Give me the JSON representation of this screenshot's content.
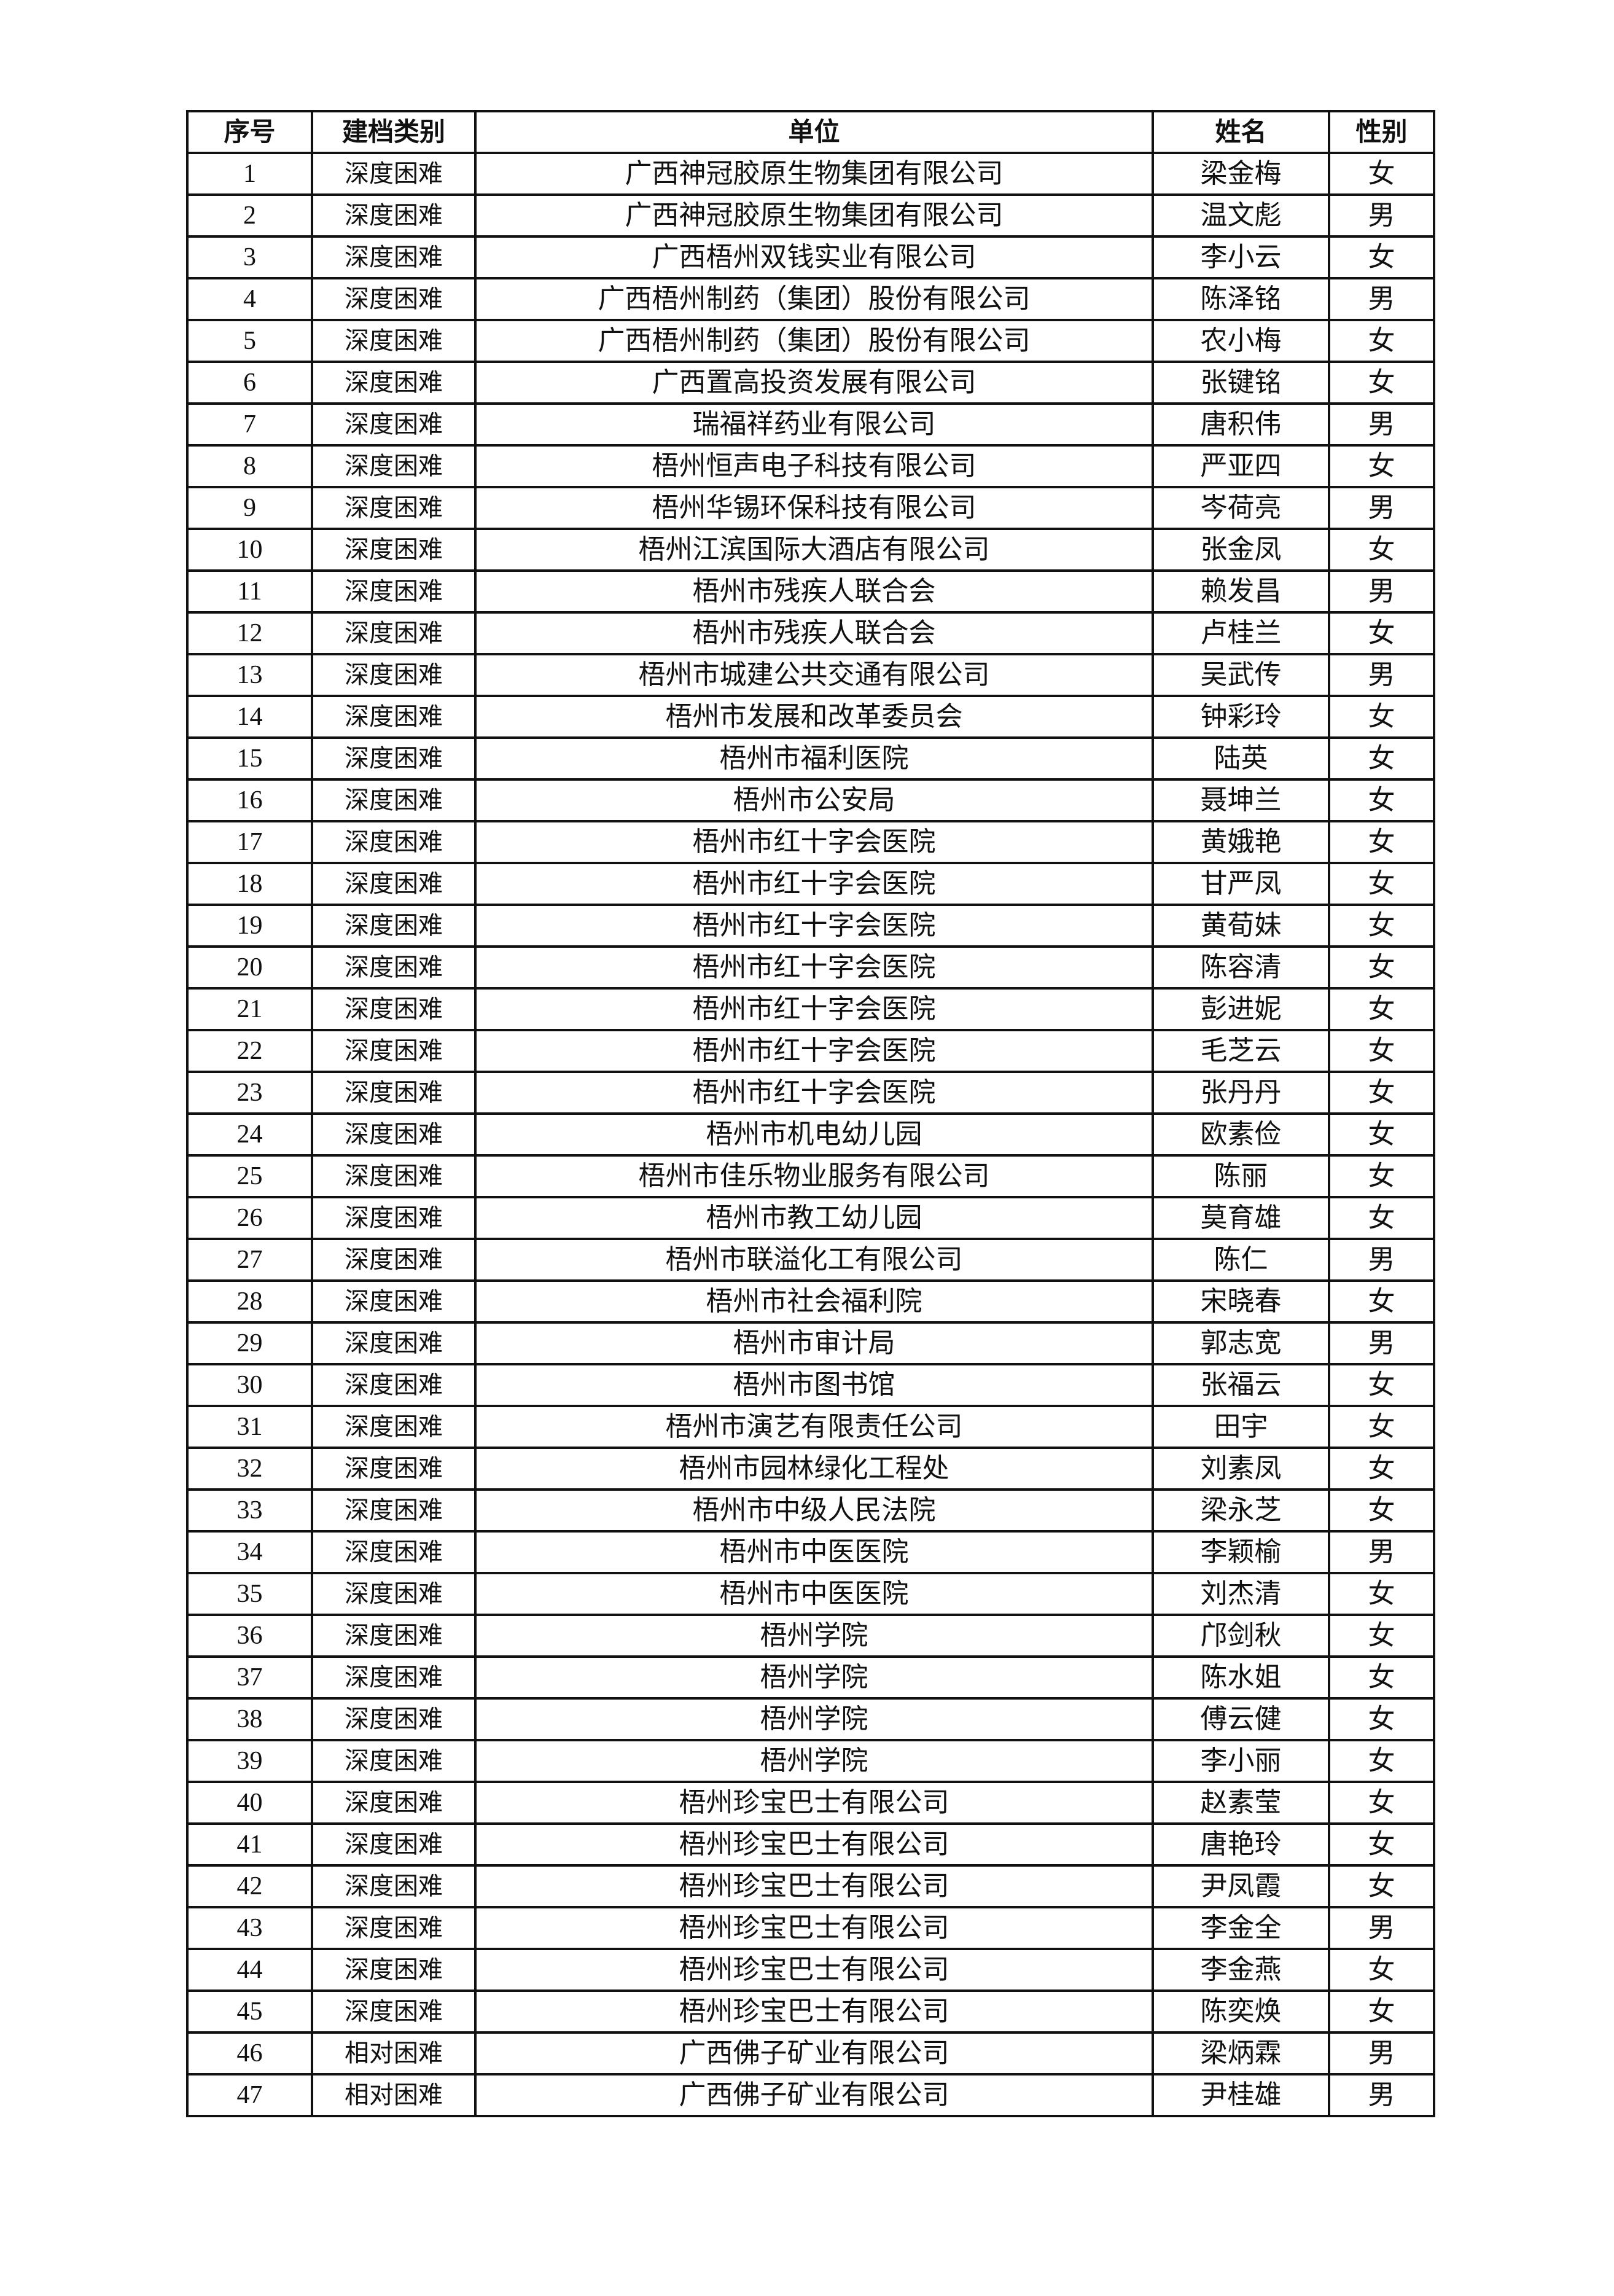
{
  "table": {
    "headers": [
      "序号",
      "建档类别",
      "单位",
      "姓名",
      "性别"
    ],
    "rows": [
      [
        "1",
        "深度困难",
        "广西神冠胶原生物集团有限公司",
        "梁金梅",
        "女"
      ],
      [
        "2",
        "深度困难",
        "广西神冠胶原生物集团有限公司",
        "温文彪",
        "男"
      ],
      [
        "3",
        "深度困难",
        "广西梧州双钱实业有限公司",
        "李小云",
        "女"
      ],
      [
        "4",
        "深度困难",
        "广西梧州制药（集团）股份有限公司",
        "陈泽铭",
        "男"
      ],
      [
        "5",
        "深度困难",
        "广西梧州制药（集团）股份有限公司",
        "农小梅",
        "女"
      ],
      [
        "6",
        "深度困难",
        "广西置高投资发展有限公司",
        "张键铭",
        "女"
      ],
      [
        "7",
        "深度困难",
        "瑞福祥药业有限公司",
        "唐积伟",
        "男"
      ],
      [
        "8",
        "深度困难",
        "梧州恒声电子科技有限公司",
        "严亚四",
        "女"
      ],
      [
        "9",
        "深度困难",
        "梧州华锡环保科技有限公司",
        "岑荷亮",
        "男"
      ],
      [
        "10",
        "深度困难",
        "梧州江滨国际大酒店有限公司",
        "张金凤",
        "女"
      ],
      [
        "11",
        "深度困难",
        "梧州市残疾人联合会",
        "赖发昌",
        "男"
      ],
      [
        "12",
        "深度困难",
        "梧州市残疾人联合会",
        "卢桂兰",
        "女"
      ],
      [
        "13",
        "深度困难",
        "梧州市城建公共交通有限公司",
        "吴武传",
        "男"
      ],
      [
        "14",
        "深度困难",
        "梧州市发展和改革委员会",
        "钟彩玲",
        "女"
      ],
      [
        "15",
        "深度困难",
        "梧州市福利医院",
        "陆英",
        "女"
      ],
      [
        "16",
        "深度困难",
        "梧州市公安局",
        "聂坤兰",
        "女"
      ],
      [
        "17",
        "深度困难",
        "梧州市红十字会医院",
        "黄娥艳",
        "女"
      ],
      [
        "18",
        "深度困难",
        "梧州市红十字会医院",
        "甘严凤",
        "女"
      ],
      [
        "19",
        "深度困难",
        "梧州市红十字会医院",
        "黄荀妹",
        "女"
      ],
      [
        "20",
        "深度困难",
        "梧州市红十字会医院",
        "陈容清",
        "女"
      ],
      [
        "21",
        "深度困难",
        "梧州市红十字会医院",
        "彭进妮",
        "女"
      ],
      [
        "22",
        "深度困难",
        "梧州市红十字会医院",
        "毛芝云",
        "女"
      ],
      [
        "23",
        "深度困难",
        "梧州市红十字会医院",
        "张丹丹",
        "女"
      ],
      [
        "24",
        "深度困难",
        "梧州市机电幼儿园",
        "欧素俭",
        "女"
      ],
      [
        "25",
        "深度困难",
        "梧州市佳乐物业服务有限公司",
        "陈丽",
        "女"
      ],
      [
        "26",
        "深度困难",
        "梧州市教工幼儿园",
        "莫育雄",
        "女"
      ],
      [
        "27",
        "深度困难",
        "梧州市联溢化工有限公司",
        "陈仁",
        "男"
      ],
      [
        "28",
        "深度困难",
        "梧州市社会福利院",
        "宋晓春",
        "女"
      ],
      [
        "29",
        "深度困难",
        "梧州市审计局",
        "郭志宽",
        "男"
      ],
      [
        "30",
        "深度困难",
        "梧州市图书馆",
        "张福云",
        "女"
      ],
      [
        "31",
        "深度困难",
        "梧州市演艺有限责任公司",
        "田宇",
        "女"
      ],
      [
        "32",
        "深度困难",
        "梧州市园林绿化工程处",
        "刘素凤",
        "女"
      ],
      [
        "33",
        "深度困难",
        "梧州市中级人民法院",
        "梁永芝",
        "女"
      ],
      [
        "34",
        "深度困难",
        "梧州市中医医院",
        "李颖榆",
        "男"
      ],
      [
        "35",
        "深度困难",
        "梧州市中医医院",
        "刘杰清",
        "女"
      ],
      [
        "36",
        "深度困难",
        "梧州学院",
        "邝剑秋",
        "女"
      ],
      [
        "37",
        "深度困难",
        "梧州学院",
        "陈水姐",
        "女"
      ],
      [
        "38",
        "深度困难",
        "梧州学院",
        "傅云健",
        "女"
      ],
      [
        "39",
        "深度困难",
        "梧州学院",
        "李小丽",
        "女"
      ],
      [
        "40",
        "深度困难",
        "梧州珍宝巴士有限公司",
        "赵素莹",
        "女"
      ],
      [
        "41",
        "深度困难",
        "梧州珍宝巴士有限公司",
        "唐艳玲",
        "女"
      ],
      [
        "42",
        "深度困难",
        "梧州珍宝巴士有限公司",
        "尹凤霞",
        "女"
      ],
      [
        "43",
        "深度困难",
        "梧州珍宝巴士有限公司",
        "李金全",
        "男"
      ],
      [
        "44",
        "深度困难",
        "梧州珍宝巴士有限公司",
        "李金燕",
        "女"
      ],
      [
        "45",
        "深度困难",
        "梧州珍宝巴士有限公司",
        "陈奕焕",
        "女"
      ],
      [
        "46",
        "相对困难",
        "广西佛子矿业有限公司",
        "梁炳霖",
        "男"
      ],
      [
        "47",
        "相对困难",
        "广西佛子矿业有限公司",
        "尹桂雄",
        "男"
      ]
    ]
  }
}
